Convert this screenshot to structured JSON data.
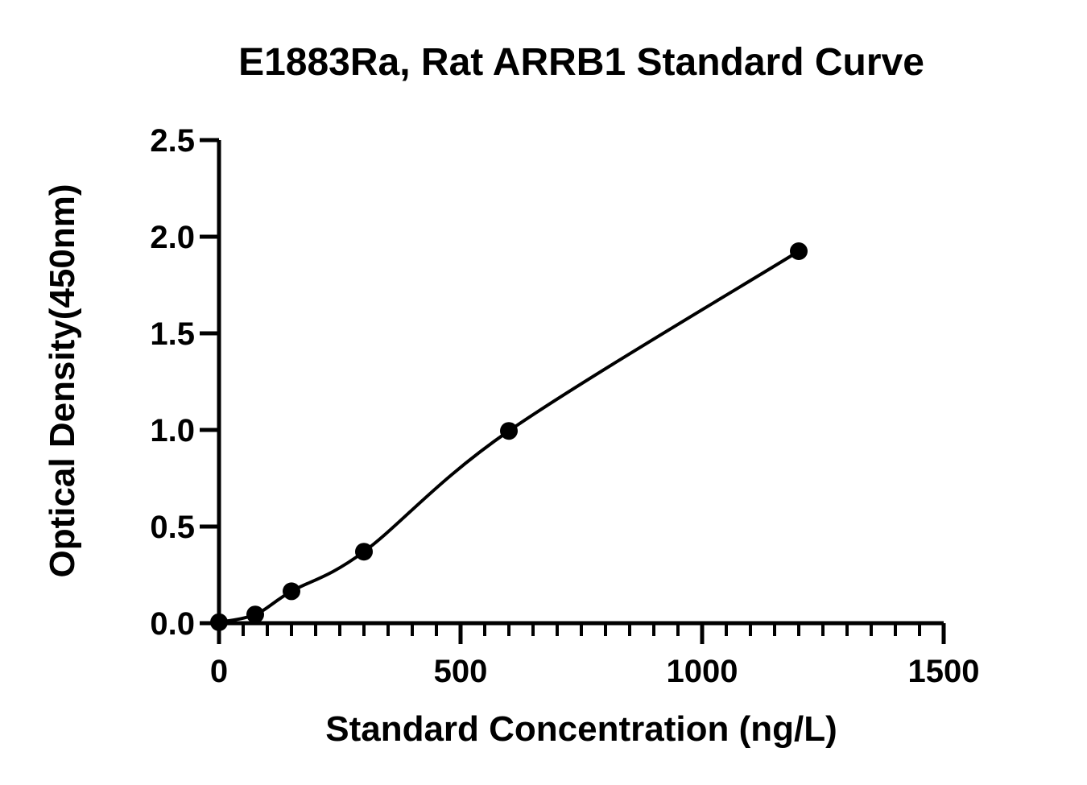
{
  "chart_data": {
    "type": "scatter",
    "title": "E1883Ra, Rat ARRB1 Standard Curve",
    "xlabel": "Standard Concentration (ng/L)",
    "ylabel": "Optical Density(450nm)",
    "xlim": [
      0,
      1500
    ],
    "ylim": [
      0,
      2.5
    ],
    "x_ticks": [
      0,
      500,
      1000,
      1500
    ],
    "x_tick_labels": [
      "0",
      "500",
      "1000",
      "1500"
    ],
    "y_ticks": [
      0,
      0.5,
      1.0,
      1.5,
      2.0,
      2.5
    ],
    "y_tick_labels": [
      "0.0",
      "0.5",
      "1.0",
      "1.5",
      "2.0",
      "2.5"
    ],
    "x_minor_step": 50,
    "grid": false,
    "fit_line": true,
    "series": [
      {
        "x": [
          0,
          75,
          150,
          300,
          600,
          1200
        ],
        "y": [
          0.005,
          0.045,
          0.165,
          0.37,
          0.995,
          1.925
        ]
      }
    ],
    "colors": {
      "marker": "#000000",
      "line": "#000000",
      "axis": "#000000"
    }
  }
}
